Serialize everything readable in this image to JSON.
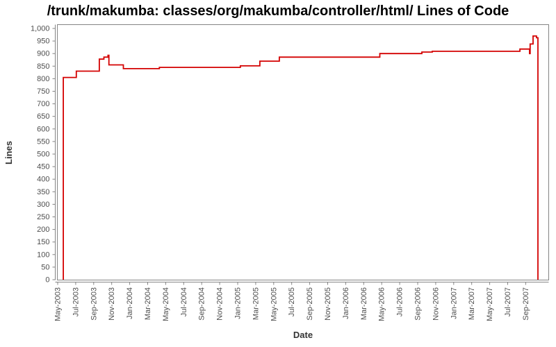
{
  "chart_data": {
    "type": "line",
    "step": true,
    "title": "/trunk/makumba: classes/org/makumba/controller/html/ Lines of Code",
    "xlabel": "Date",
    "ylabel": "Lines",
    "ylim": [
      0,
      1000
    ],
    "y_tick_step": 50,
    "y_tick_labels": [
      "0",
      "50",
      "100",
      "150",
      "200",
      "250",
      "300",
      "350",
      "400",
      "450",
      "500",
      "550",
      "600",
      "650",
      "700",
      "750",
      "800",
      "850",
      "900",
      "950",
      "1,000"
    ],
    "x_tick_labels": [
      "May-2003",
      "Jul-2003",
      "Sep-2003",
      "Nov-2003",
      "Jan-2004",
      "Mar-2004",
      "May-2004",
      "Jul-2004",
      "Sep-2004",
      "Nov-2004",
      "Jan-2005",
      "Mar-2005",
      "May-2005",
      "Jul-2005",
      "Sep-2005",
      "Nov-2005",
      "Jan-2006",
      "Mar-2006",
      "May-2006",
      "Jul-2006",
      "Sep-2006",
      "Nov-2006",
      "Jan-2007",
      "Mar-2007",
      "May-2007",
      "Jul-2007",
      "Sep-2007"
    ],
    "grid": "off",
    "legend": "none",
    "line_color": "#d40000",
    "axis_color": "#848484",
    "tick_label_color": "#4e4e4e",
    "points": [
      {
        "date": "2003-05-20",
        "lines": 0
      },
      {
        "date": "2003-05-20",
        "lines": 805
      },
      {
        "date": "2003-07-03",
        "lines": 830
      },
      {
        "date": "2003-09-20",
        "lines": 878
      },
      {
        "date": "2003-10-05",
        "lines": 886
      },
      {
        "date": "2003-10-19",
        "lines": 893
      },
      {
        "date": "2003-10-22",
        "lines": 855
      },
      {
        "date": "2003-12-10",
        "lines": 840
      },
      {
        "date": "2004-04-10",
        "lines": 845
      },
      {
        "date": "2005-01-10",
        "lines": 851
      },
      {
        "date": "2005-03-15",
        "lines": 870
      },
      {
        "date": "2005-05-20",
        "lines": 886
      },
      {
        "date": "2006-04-25",
        "lines": 900
      },
      {
        "date": "2006-09-15",
        "lines": 906
      },
      {
        "date": "2006-10-20",
        "lines": 909
      },
      {
        "date": "2007-08-12",
        "lines": 918
      },
      {
        "date": "2007-09-14",
        "lines": 900
      },
      {
        "date": "2007-09-16",
        "lines": 938
      },
      {
        "date": "2007-09-26",
        "lines": 970
      },
      {
        "date": "2007-10-07",
        "lines": 963
      },
      {
        "date": "2007-10-12",
        "lines": 0
      }
    ]
  }
}
